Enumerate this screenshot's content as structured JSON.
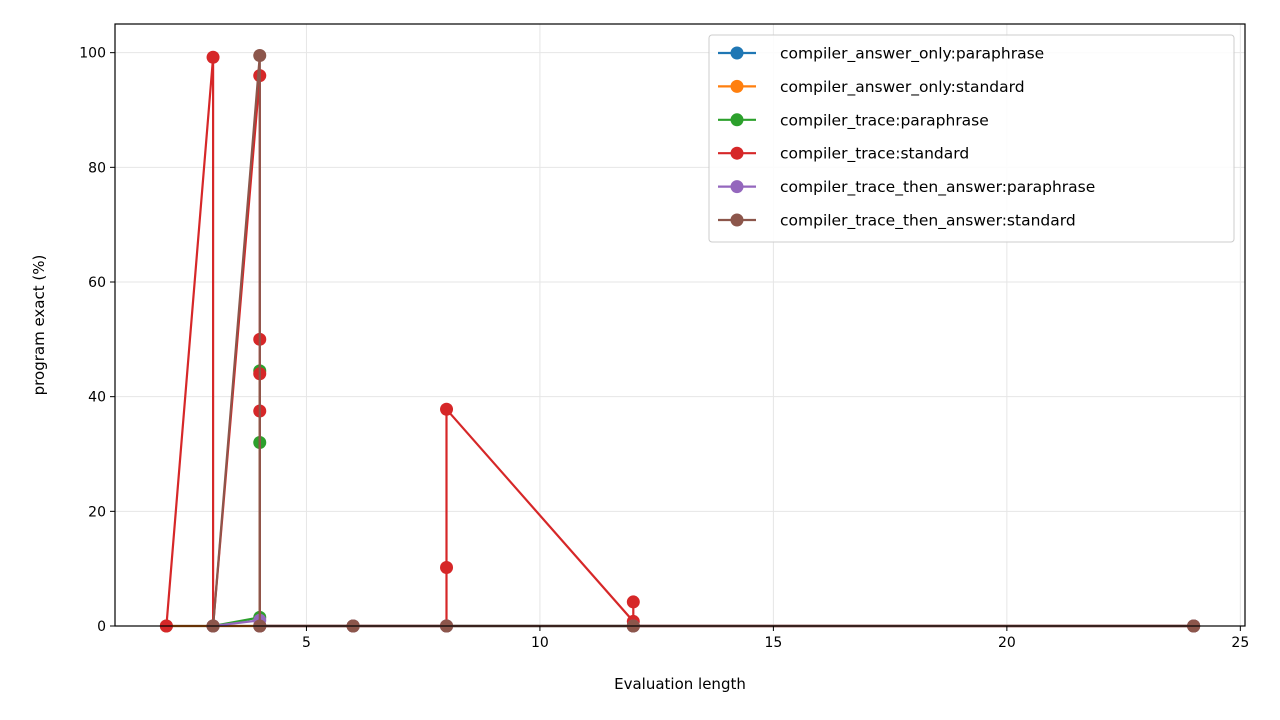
{
  "chart_data": {
    "type": "line",
    "title": "",
    "xlabel": "Evaluation length",
    "ylabel": "program exact (%)",
    "xlim": [
      0.9,
      25.1
    ],
    "ylim": [
      0,
      105
    ],
    "xticks": [
      5,
      10,
      15,
      20,
      25
    ],
    "yticks": [
      0,
      20,
      40,
      60,
      80,
      100
    ],
    "grid": true,
    "legend_position": "top-right",
    "series": [
      {
        "name": "compiler_answer_only:paraphrase",
        "color": "#1f77b4",
        "points": [
          [
            2,
            0
          ],
          [
            3,
            0
          ],
          [
            4,
            0
          ],
          [
            6,
            0
          ],
          [
            8,
            0
          ],
          [
            12,
            0
          ],
          [
            24,
            0
          ]
        ]
      },
      {
        "name": "compiler_answer_only:standard",
        "color": "#ff7f0e",
        "points": [
          [
            2,
            0
          ],
          [
            3,
            0
          ],
          [
            4,
            0
          ],
          [
            6,
            0
          ],
          [
            8,
            0
          ],
          [
            12,
            0
          ],
          [
            24,
            0
          ]
        ]
      },
      {
        "name": "compiler_trace:paraphrase",
        "color": "#2ca02c",
        "points": [
          [
            3,
            0
          ],
          [
            4,
            1.5
          ],
          [
            4,
            32
          ],
          [
            4,
            44.5
          ],
          [
            4,
            0
          ],
          [
            6,
            0
          ],
          [
            8,
            0
          ],
          [
            12,
            0
          ],
          [
            24,
            0
          ]
        ]
      },
      {
        "name": "compiler_trace:standard",
        "color": "#d62728",
        "points": [
          [
            2,
            0
          ],
          [
            3,
            99.2
          ],
          [
            3,
            0
          ],
          [
            4,
            96
          ],
          [
            4,
            50
          ],
          [
            4,
            44
          ],
          [
            4,
            37.5
          ],
          [
            4,
            0
          ],
          [
            6,
            0
          ],
          [
            8,
            0
          ],
          [
            8,
            10.2
          ],
          [
            8,
            37.8
          ],
          [
            12,
            0.8
          ],
          [
            12,
            4.2
          ],
          [
            12,
            0
          ],
          [
            24,
            0
          ]
        ]
      },
      {
        "name": "compiler_trace_then_answer:paraphrase",
        "color": "#9467bd",
        "points": [
          [
            3,
            0
          ],
          [
            4,
            1.0
          ],
          [
            4,
            0
          ],
          [
            6,
            0
          ],
          [
            8,
            0
          ],
          [
            12,
            0
          ],
          [
            24,
            0
          ]
        ]
      },
      {
        "name": "compiler_trace_then_answer:standard",
        "color": "#8c564b",
        "points": [
          [
            3,
            0
          ],
          [
            4,
            99.5
          ],
          [
            4,
            0
          ],
          [
            6,
            0
          ],
          [
            8,
            0
          ],
          [
            12,
            0
          ],
          [
            24,
            0
          ]
        ]
      }
    ]
  }
}
